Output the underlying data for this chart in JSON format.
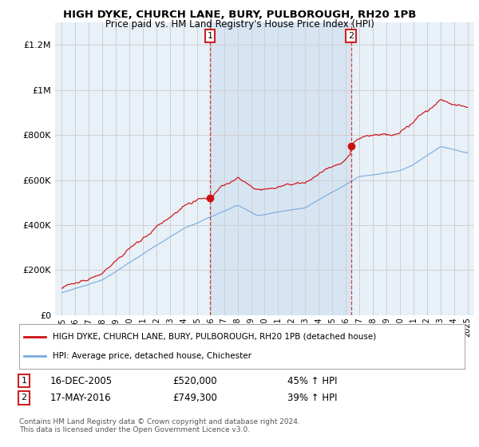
{
  "title": "HIGH DYKE, CHURCH LANE, BURY, PULBOROUGH, RH20 1PB",
  "subtitle": "Price paid vs. HM Land Registry's House Price Index (HPI)",
  "background_color": "#ffffff",
  "plot_bg_color": "#e8f0f8",
  "shade_color": "#c8dcf0",
  "grid_color": "#d0d0d0",
  "line1_color": "#cc1111",
  "line2_color": "#77aadd",
  "sale1_x": 2005.96,
  "sale1_y": 520000,
  "sale2_x": 2016.38,
  "sale2_y": 749300,
  "ylim_min": 0,
  "ylim_max": 1300000,
  "xlim_min": 1994.5,
  "xlim_max": 2025.5,
  "yticks": [
    0,
    200000,
    400000,
    600000,
    800000,
    1000000,
    1200000
  ],
  "ytick_labels": [
    "£0",
    "£200K",
    "£400K",
    "£600K",
    "£800K",
    "£1M",
    "£1.2M"
  ],
  "xticks": [
    1995,
    1996,
    1997,
    1998,
    1999,
    2000,
    2001,
    2002,
    2003,
    2004,
    2005,
    2006,
    2007,
    2008,
    2009,
    2010,
    2011,
    2012,
    2013,
    2014,
    2015,
    2016,
    2017,
    2018,
    2019,
    2020,
    2021,
    2022,
    2023,
    2024,
    2025
  ],
  "legend_line1": "HIGH DYKE, CHURCH LANE, BURY, PULBOROUGH, RH20 1PB (detached house)",
  "legend_line2": "HPI: Average price, detached house, Chichester",
  "footnote": "Contains HM Land Registry data © Crown copyright and database right 2024.\nThis data is licensed under the Open Government Licence v3.0."
}
